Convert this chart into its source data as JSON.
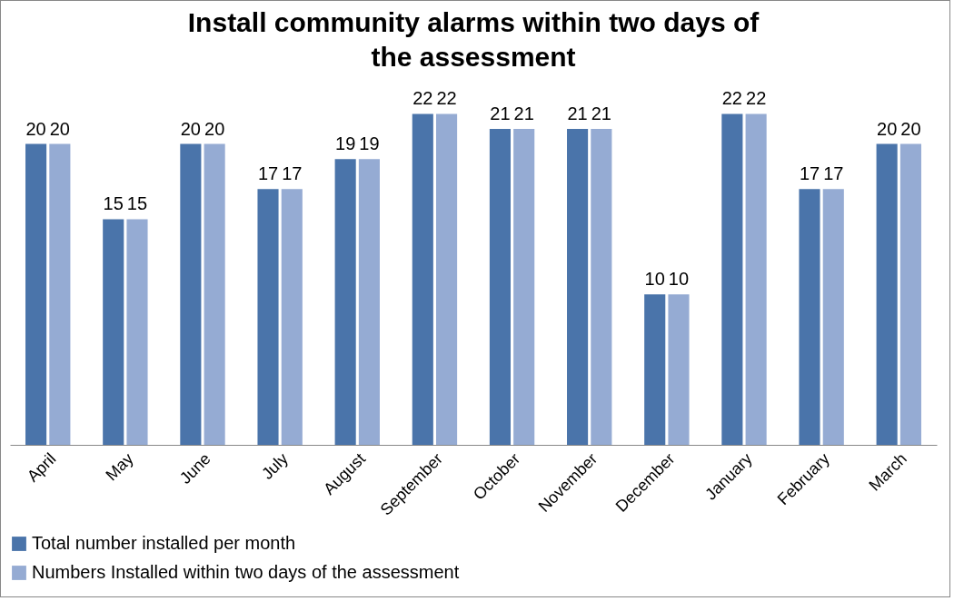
{
  "chart_data": {
    "type": "bar",
    "title": "Install community alarms within two days of the assessment",
    "categories": [
      "April",
      "May",
      "June",
      "July",
      "August",
      "September",
      "October",
      "November",
      "December",
      "January",
      "February",
      "March"
    ],
    "series": [
      {
        "name": "Total number installed per month",
        "color": "#4a74aa",
        "values": [
          20,
          15,
          20,
          17,
          19,
          22,
          21,
          21,
          10,
          22,
          17,
          20
        ]
      },
      {
        "name": "Numbers Installed within two days of the assessment",
        "color": "#95abd3",
        "values": [
          20,
          15,
          20,
          17,
          19,
          22,
          21,
          21,
          10,
          22,
          17,
          20
        ]
      }
    ],
    "data_labels": true,
    "legend": "bottom",
    "grid": false
  }
}
